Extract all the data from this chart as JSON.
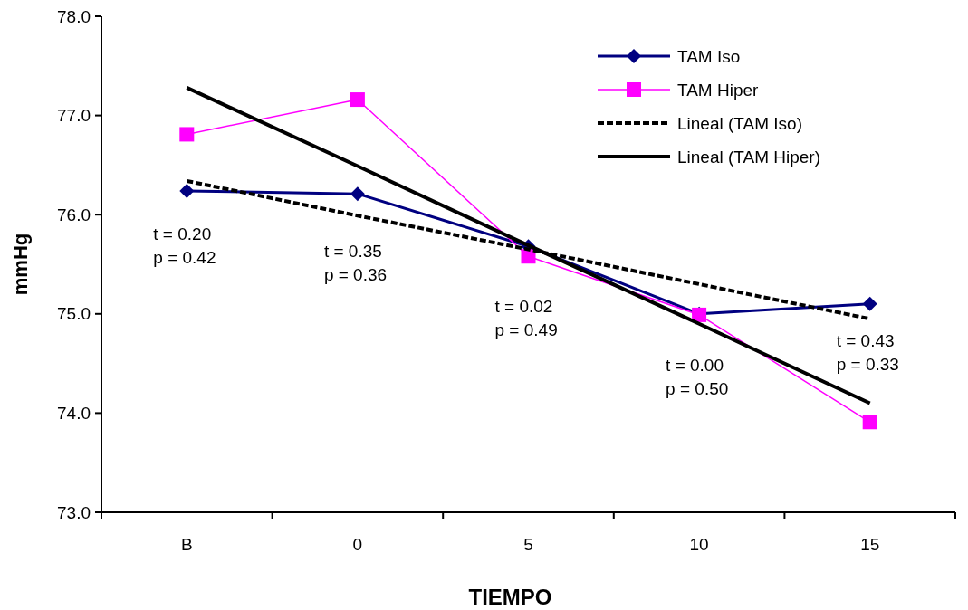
{
  "chart_data": {
    "type": "line",
    "xlabel": "TIEMPO",
    "ylabel": "mmHg",
    "categories": [
      "B",
      "0",
      "5",
      "10",
      "15"
    ],
    "ylim": [
      73,
      78
    ],
    "yticks": [
      {
        "value": 73,
        "label": "73.0"
      },
      {
        "value": 74,
        "label": "74.0"
      },
      {
        "value": 75,
        "label": "75.0"
      },
      {
        "value": 76,
        "label": "76.0"
      },
      {
        "value": 77,
        "label": "77.0"
      },
      {
        "value": 78,
        "label": "78.0"
      }
    ],
    "grid": false,
    "legend": "top right",
    "series": [
      {
        "name": "TAM Iso",
        "color": "#000080",
        "values": [
          76.24,
          76.21,
          75.68,
          75.0,
          75.1
        ],
        "marker": "diamond",
        "line_style": "solid"
      },
      {
        "name": "TAM Hiper",
        "color": "#ff00ff",
        "values": [
          76.81,
          77.16,
          75.58,
          74.99,
          73.91
        ],
        "marker": "square",
        "line_style": "solid"
      },
      {
        "name": "Lineal (TAM Iso)",
        "color": "#000000",
        "values": [
          76.34,
          75.99,
          75.65,
          75.3,
          74.95
        ],
        "marker": "none",
        "line_style": "dashed"
      },
      {
        "name": "Lineal (TAM Hiper)",
        "color": "#000000",
        "values": [
          77.28,
          76.49,
          75.69,
          74.9,
          74.1
        ],
        "marker": "none",
        "line_style": "solid"
      }
    ],
    "annotations": [
      "t = 0.20\np = 0.42",
      "t = 0.35\np = 0.36",
      "t = 0.02\np = 0.49",
      "t = 0.00\np = 0.50",
      "t = 0.43\np = 0.33"
    ]
  }
}
